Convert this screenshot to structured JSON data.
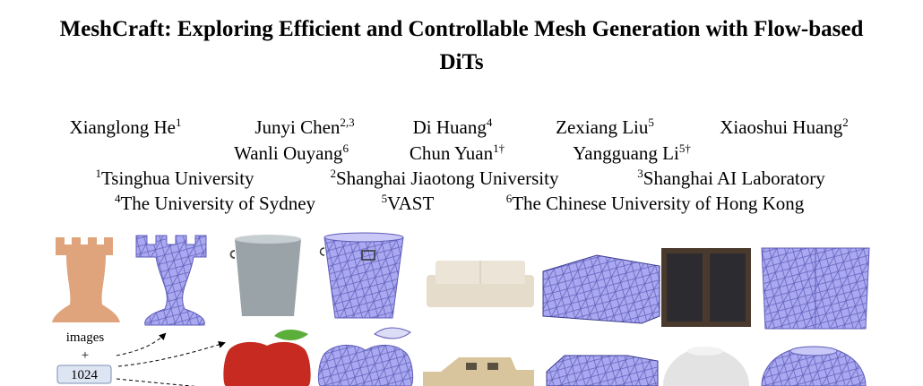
{
  "title": "MeshCraft: Exploring Efficient and Controllable Mesh Generation with Flow-based DiTs",
  "authors": [
    {
      "name": "Xianglong He",
      "sup": "1"
    },
    {
      "name": "Junyi Chen",
      "sup": "2,3"
    },
    {
      "name": "Di Huang",
      "sup": "4"
    },
    {
      "name": "Zexiang Liu",
      "sup": "5"
    },
    {
      "name": "Xiaoshui Huang",
      "sup": "2"
    },
    {
      "name": "Wanli Ouyang",
      "sup": "6"
    },
    {
      "name": "Chun Yuan",
      "sup": "1†"
    },
    {
      "name": "Yangguang Li",
      "sup": "5†"
    }
  ],
  "affiliations": [
    {
      "sup": "1",
      "name": "Tsinghua University"
    },
    {
      "sup": "2",
      "name": "Shanghai Jiaotong University"
    },
    {
      "sup": "3",
      "name": "Shanghai AI Laboratory"
    },
    {
      "sup": "4",
      "name": "The University of Sydney"
    },
    {
      "sup": "5",
      "name": "VAST"
    },
    {
      "sup": "6",
      "name": "The Chinese University of Hong Kong"
    }
  ],
  "figure": {
    "input_label": "images",
    "plus": "+",
    "face_count": "1024"
  }
}
